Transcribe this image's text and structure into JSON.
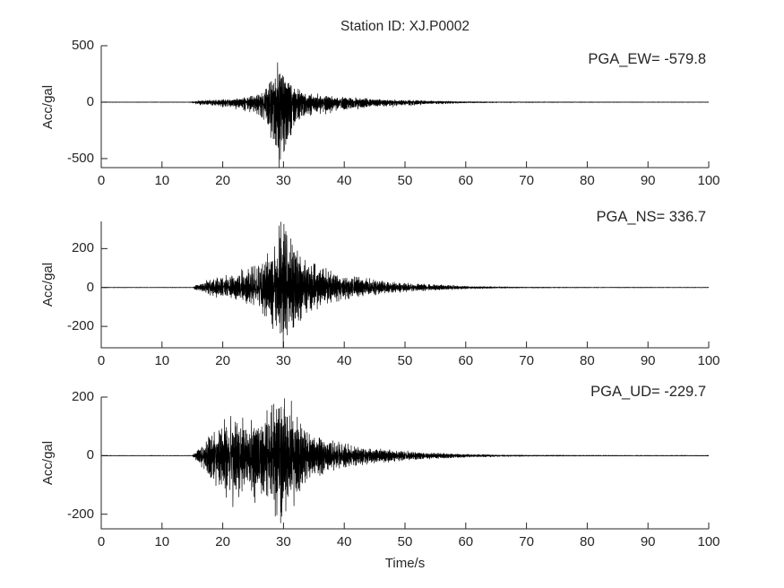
{
  "figure": {
    "title": "Station ID: XJ.P0002",
    "xlabel": "Time/s",
    "background": "#ffffff",
    "axis_color": "#262626",
    "trace_color": "#000000"
  },
  "chart_data": [
    {
      "type": "line",
      "component": "EW",
      "annotation": "PGA_EW= -579.8",
      "pga": -579.8,
      "peak_positive": 350,
      "peak_negative": -579.8,
      "ylabel": "Acc/gal",
      "yticks": [
        -500,
        0,
        500
      ],
      "ylim": [
        -580,
        500
      ],
      "xlim": [
        0,
        100
      ],
      "xticks": [
        0,
        10,
        20,
        30,
        40,
        50,
        60,
        70,
        80,
        90,
        100
      ],
      "grid": false,
      "seed": 7,
      "envelope": [
        [
          0,
          0.004
        ],
        [
          14.5,
          0.004
        ],
        [
          16,
          0.035
        ],
        [
          18,
          0.06
        ],
        [
          20,
          0.075
        ],
        [
          22,
          0.1
        ],
        [
          24,
          0.14
        ],
        [
          25.5,
          0.2
        ],
        [
          26.5,
          0.32
        ],
        [
          27.5,
          0.55
        ],
        [
          28.5,
          0.85
        ],
        [
          29.3,
          1.0
        ],
        [
          30.2,
          0.9
        ],
        [
          31,
          0.6
        ],
        [
          32,
          0.38
        ],
        [
          33.5,
          0.28
        ],
        [
          35,
          0.22
        ],
        [
          37,
          0.17
        ],
        [
          39,
          0.14
        ],
        [
          42,
          0.11
        ],
        [
          45,
          0.085
        ],
        [
          48,
          0.065
        ],
        [
          51,
          0.05
        ],
        [
          54,
          0.035
        ],
        [
          57,
          0.025
        ],
        [
          60,
          0.016
        ],
        [
          64,
          0.01
        ],
        [
          70,
          0.007
        ],
        [
          80,
          0.005
        ],
        [
          100,
          0.004
        ]
      ]
    },
    {
      "type": "line",
      "component": "NS",
      "annotation": "PGA_NS= 336.7",
      "pga": 336.7,
      "peak_positive": 336.7,
      "peak_negative": -310,
      "ylabel": "Acc/gal",
      "yticks": [
        -200,
        0,
        200
      ],
      "ylim": [
        -310,
        340
      ],
      "xlim": [
        0,
        100
      ],
      "xticks": [
        0,
        10,
        20,
        30,
        40,
        50,
        60,
        70,
        80,
        90,
        100
      ],
      "grid": false,
      "seed": 13,
      "envelope": [
        [
          0,
          0.004
        ],
        [
          15,
          0.004
        ],
        [
          16,
          0.07
        ],
        [
          17.5,
          0.13
        ],
        [
          19,
          0.17
        ],
        [
          21,
          0.2
        ],
        [
          23,
          0.26
        ],
        [
          25,
          0.38
        ],
        [
          26.5,
          0.5
        ],
        [
          28,
          0.7
        ],
        [
          29.5,
          1.0
        ],
        [
          30.5,
          0.95
        ],
        [
          31.5,
          0.75
        ],
        [
          32.5,
          0.6
        ],
        [
          34,
          0.45
        ],
        [
          35.5,
          0.36
        ],
        [
          37.5,
          0.28
        ],
        [
          40,
          0.22
        ],
        [
          43,
          0.17
        ],
        [
          46,
          0.12
        ],
        [
          49,
          0.09
        ],
        [
          52,
          0.065
        ],
        [
          55,
          0.05
        ],
        [
          58,
          0.035
        ],
        [
          61,
          0.022
        ],
        [
          65,
          0.013
        ],
        [
          70,
          0.008
        ],
        [
          80,
          0.005
        ],
        [
          100,
          0.004
        ]
      ]
    },
    {
      "type": "line",
      "component": "UD",
      "annotation": "PGA_UD= -229.7",
      "pga": -229.7,
      "peak_positive": 195,
      "peak_negative": -229.7,
      "ylabel": "Acc/gal",
      "yticks": [
        -200,
        0,
        200
      ],
      "ylim": [
        -250,
        200
      ],
      "xlim": [
        0,
        100
      ],
      "xticks": [
        0,
        10,
        20,
        30,
        40,
        50,
        60,
        70,
        80,
        90,
        100
      ],
      "grid": false,
      "seed": 29,
      "envelope": [
        [
          0,
          0.004
        ],
        [
          15,
          0.004
        ],
        [
          16,
          0.12
        ],
        [
          17.5,
          0.3
        ],
        [
          19,
          0.45
        ],
        [
          20.5,
          0.58
        ],
        [
          22,
          0.62
        ],
        [
          23.5,
          0.55
        ],
        [
          25,
          0.6
        ],
        [
          26.5,
          0.62
        ],
        [
          28,
          0.8
        ],
        [
          29.2,
          1.0
        ],
        [
          30.5,
          0.95
        ],
        [
          31.5,
          0.8
        ],
        [
          32.5,
          0.6
        ],
        [
          34,
          0.42
        ],
        [
          35.5,
          0.32
        ],
        [
          37.5,
          0.25
        ],
        [
          40,
          0.19
        ],
        [
          43,
          0.14
        ],
        [
          46,
          0.11
        ],
        [
          49,
          0.08
        ],
        [
          52,
          0.06
        ],
        [
          55,
          0.045
        ],
        [
          58,
          0.032
        ],
        [
          61,
          0.022
        ],
        [
          65,
          0.014
        ],
        [
          70,
          0.009
        ],
        [
          80,
          0.006
        ],
        [
          100,
          0.005
        ]
      ]
    }
  ]
}
